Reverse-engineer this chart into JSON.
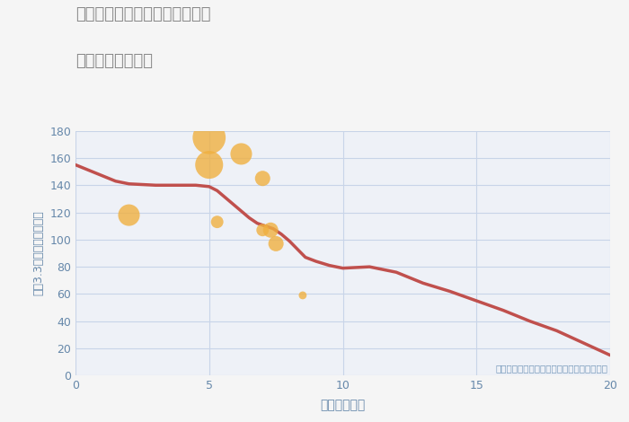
{
  "title_line1": "神奈川県横浜市南区花之木町の",
  "title_line2": "駅距離別土地価格",
  "xlabel": "駅距離（分）",
  "ylabel": "坪（3.3㎡）単価（万円）",
  "annotation": "円の大きさは、取引のあった物件面積を示す",
  "xlim": [
    0,
    20
  ],
  "ylim": [
    0,
    180
  ],
  "xticks": [
    0,
    5,
    10,
    15,
    20
  ],
  "yticks": [
    0,
    20,
    40,
    60,
    80,
    100,
    120,
    140,
    160,
    180
  ],
  "fig_bg_color": "#f5f5f5",
  "plot_bg_color": "#eef1f7",
  "line_color": "#c0504d",
  "scatter_color": "#f0b040",
  "title_color": "#888888",
  "annot_color": "#7799bb",
  "tick_color": "#6688aa",
  "grid_color": "#c8d4e8",
  "line_x": [
    0,
    0.5,
    1,
    1.5,
    2,
    2.5,
    3,
    3.5,
    4,
    4.5,
    5,
    5.3,
    5.6,
    5.9,
    6.2,
    6.5,
    6.8,
    7.1,
    7.4,
    7.7,
    8.0,
    8.3,
    8.6,
    9.0,
    9.5,
    10.0,
    10.5,
    11.0,
    12,
    13,
    14,
    15,
    16,
    17,
    18,
    19,
    20
  ],
  "line_y": [
    155,
    151,
    147,
    143,
    141,
    140.5,
    140,
    140,
    140,
    140,
    139,
    136,
    131,
    126,
    121,
    116,
    112,
    110,
    108,
    104,
    99,
    93,
    87,
    84,
    81,
    79,
    79.5,
    80,
    76,
    68,
    62,
    55,
    48,
    40,
    33,
    24,
    15
  ],
  "scatter_x": [
    2.0,
    5.0,
    5.0,
    5.3,
    6.2,
    7.0,
    7.0,
    7.3,
    7.5,
    8.5
  ],
  "scatter_y": [
    118,
    175,
    155,
    113,
    163,
    145,
    107,
    107,
    97,
    59
  ],
  "scatter_size": [
    300,
    700,
    500,
    100,
    300,
    150,
    100,
    150,
    150,
    40
  ],
  "scatter_alpha": 0.8
}
